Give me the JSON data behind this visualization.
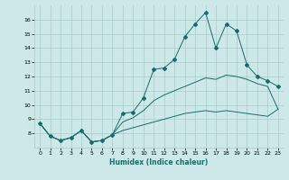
{
  "xlabel": "Humidex (Indice chaleur)",
  "background_color": "#cce8e8",
  "grid_color": "#aacccc",
  "line_color": "#1a6b6b",
  "xlim": [
    -0.5,
    23.5
  ],
  "ylim": [
    7,
    17
  ],
  "yticks": [
    8,
    9,
    10,
    11,
    12,
    13,
    14,
    15,
    16
  ],
  "xticks": [
    0,
    1,
    2,
    3,
    4,
    5,
    6,
    7,
    8,
    9,
    10,
    11,
    12,
    13,
    14,
    15,
    16,
    17,
    18,
    19,
    20,
    21,
    22,
    23
  ],
  "series": [
    {
      "x": [
        0,
        1,
        2,
        3,
        4,
        5,
        6,
        7,
        8,
        9,
        10,
        11,
        12,
        13,
        14,
        15,
        16,
        17,
        18,
        19,
        20,
        21,
        22,
        23
      ],
      "y": [
        8.7,
        7.8,
        7.5,
        7.7,
        8.2,
        7.4,
        7.5,
        7.9,
        9.4,
        9.5,
        10.5,
        12.5,
        12.6,
        13.2,
        14.8,
        15.7,
        16.5,
        14.0,
        15.7,
        15.2,
        12.8,
        12.0,
        11.7,
        11.3
      ],
      "marker": "D",
      "markersize": 2.0
    },
    {
      "x": [
        0,
        1,
        2,
        3,
        4,
        5,
        6,
        7,
        8,
        9,
        10,
        11,
        12,
        13,
        14,
        15,
        16,
        17,
        18,
        19,
        20,
        21,
        22,
        23
      ],
      "y": [
        8.7,
        7.8,
        7.5,
        7.7,
        8.2,
        7.4,
        7.5,
        7.9,
        8.8,
        9.1,
        9.6,
        10.3,
        10.7,
        11.0,
        11.3,
        11.6,
        11.9,
        11.8,
        12.1,
        12.0,
        11.8,
        11.5,
        11.3,
        9.7
      ],
      "marker": null,
      "markersize": 0
    },
    {
      "x": [
        0,
        1,
        2,
        3,
        4,
        5,
        6,
        7,
        8,
        9,
        10,
        11,
        12,
        13,
        14,
        15,
        16,
        17,
        18,
        19,
        20,
        21,
        22,
        23
      ],
      "y": [
        8.7,
        7.8,
        7.5,
        7.7,
        8.2,
        7.4,
        7.5,
        7.9,
        8.2,
        8.4,
        8.6,
        8.8,
        9.0,
        9.2,
        9.4,
        9.5,
        9.6,
        9.5,
        9.6,
        9.5,
        9.4,
        9.3,
        9.2,
        9.7
      ],
      "marker": null,
      "markersize": 0
    }
  ]
}
